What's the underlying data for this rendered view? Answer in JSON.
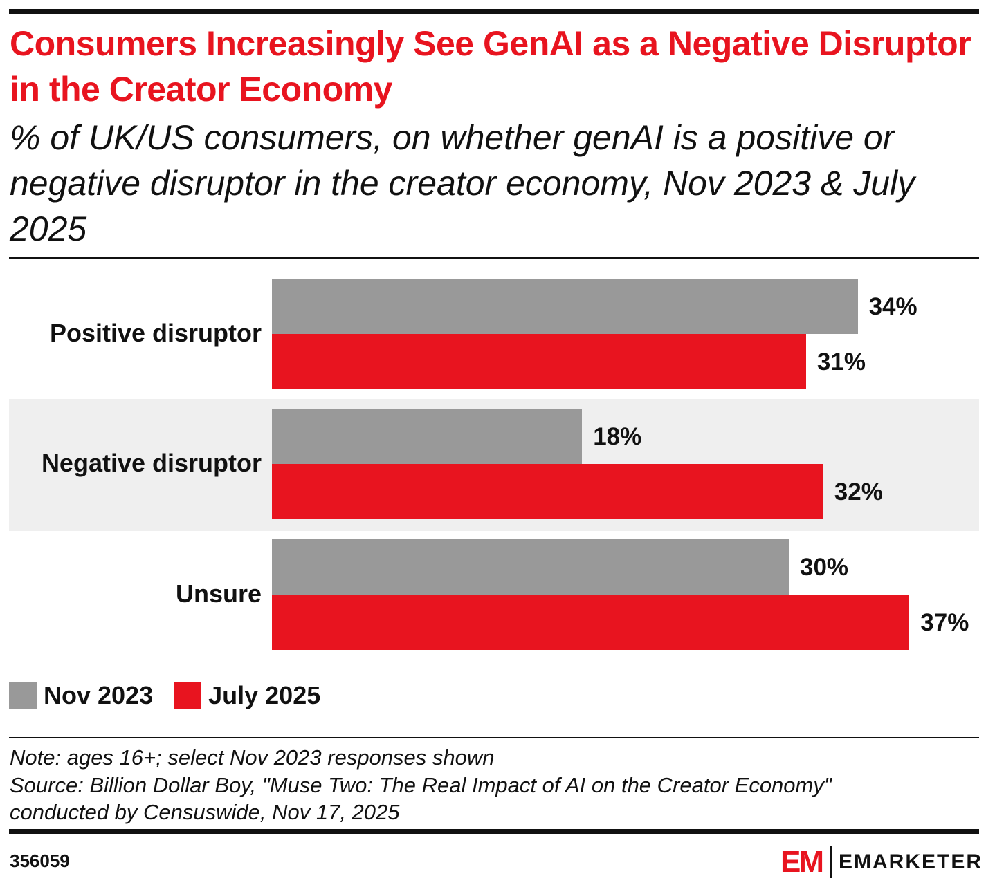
{
  "title": "Consumers Increasingly See GenAI as a Negative Disruptor in the Creator Economy",
  "subtitle": "% of UK/US consumers, on whether genAI is a positive or negative disruptor in the creator economy, Nov 2023 & July 2025",
  "chart_data": {
    "type": "bar",
    "orientation": "horizontal",
    "categories": [
      "Positive disruptor",
      "Negative disruptor",
      "Unsure"
    ],
    "series": [
      {
        "name": "Nov 2023",
        "color": "#999999",
        "values": [
          34,
          18,
          30
        ],
        "labels": [
          "34%",
          "18%",
          "30%"
        ]
      },
      {
        "name": "July 2025",
        "color": "#e8141f",
        "values": [
          31,
          32,
          37
        ],
        "labels": [
          "31%",
          "32%",
          "37%"
        ]
      }
    ],
    "xlim": [
      0,
      40
    ],
    "grid": false,
    "legend": "bottom-left"
  },
  "note": "Note: ages 16+; select Nov 2023 responses shown",
  "source_line1": "Source: Billion Dollar Boy, \"Muse Two: The Real Impact of AI on the Creator Economy\"",
  "source_line2": "conducted by Censuswide, Nov 17, 2025",
  "chart_id": "356059",
  "logo": {
    "mark": "EM",
    "text": "EMARKETER"
  }
}
